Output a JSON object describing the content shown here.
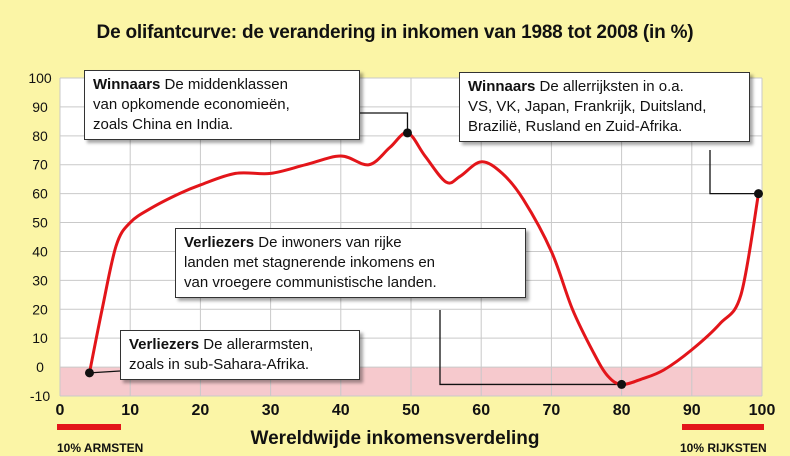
{
  "chart_data": {
    "type": "line",
    "title": "De olifantcurve: de verandering in inkomen van 1988 tot 2008 (in %)",
    "xlabel": "Wereldwijde inkomensverdeling",
    "ylabel": "",
    "xlim": [
      0,
      100
    ],
    "ylim": [
      -10,
      100
    ],
    "x_ticks": [
      0,
      10,
      20,
      30,
      40,
      50,
      60,
      70,
      80,
      90,
      100
    ],
    "y_ticks": [
      100,
      90,
      80,
      70,
      60,
      50,
      40,
      30,
      20,
      10,
      0,
      -10
    ],
    "grid": true,
    "colors": {
      "line": "#e3151a",
      "negative_zone": "#f6c9cd",
      "background": "#fbf5a6",
      "plot": "#ffffff"
    },
    "series": [
      {
        "x": [
          4.2,
          6,
          8,
          10,
          13,
          17,
          20,
          25,
          30,
          35,
          40,
          44,
          47,
          49.5,
          52,
          55,
          57,
          60,
          63,
          66,
          70,
          73,
          76,
          78,
          80,
          83,
          86,
          90,
          94,
          97,
          99.5
        ],
        "values": [
          -2,
          20,
          42,
          50,
          55,
          60,
          63,
          67,
          67,
          70,
          73,
          70,
          76,
          81,
          73,
          64,
          66,
          71,
          67,
          58,
          40,
          20,
          5,
          -3,
          -6,
          -4,
          -1,
          6,
          15,
          25,
          60
        ]
      }
    ],
    "markers": [
      {
        "x": 4.2,
        "y": -2
      },
      {
        "x": 49.5,
        "y": 81
      },
      {
        "x": 80,
        "y": -6
      },
      {
        "x": 99.5,
        "y": 60
      }
    ],
    "annotations": [
      {
        "bold": "Winnaars",
        "lines": [
          " De middenklassen",
          "van opkomende economieën,",
          "zoals China en India."
        ]
      },
      {
        "bold": "Winnaars",
        "lines": [
          " De allerrijksten in o.a.",
          "VS, VK, Japan, Frankrijk, Duitsland,",
          "Brazilië, Rusland en Zuid-Afrika."
        ]
      },
      {
        "bold": "Verliezers",
        "lines": [
          " De inwoners van rijke",
          "landen met stagnerende inkomens  en",
          "van vroegere  communistische landen."
        ]
      },
      {
        "bold": "Verliezers",
        "lines": [
          " De allerarmsten,",
          "zoals in sub-Sahara-Afrika."
        ]
      }
    ],
    "bands": [
      {
        "label": "10% ARMSTEN",
        "from": 0,
        "to": 10
      },
      {
        "label": "10% RIJKSTEN",
        "from": 90,
        "to": 100
      }
    ]
  }
}
